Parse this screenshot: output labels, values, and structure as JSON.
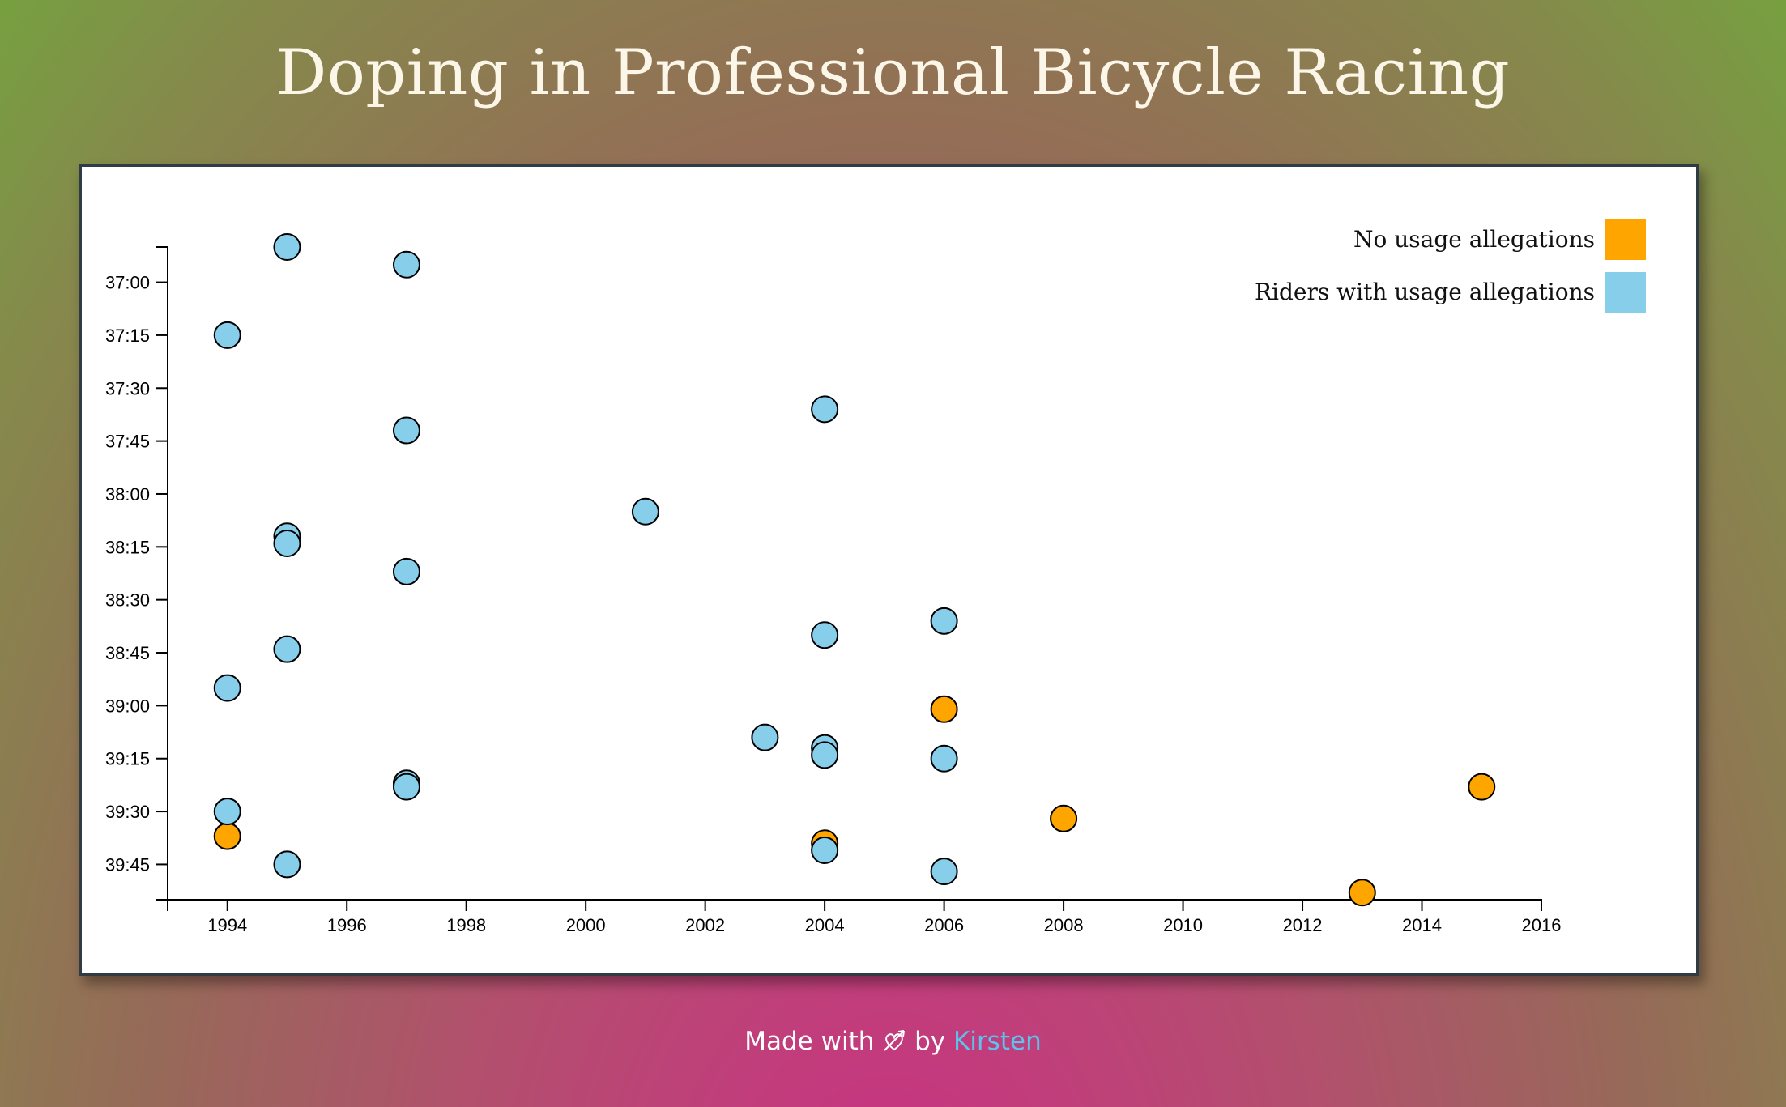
{
  "page": {
    "title": "Doping in Professional Bicycle Racing",
    "footer": {
      "made_with": "Made with",
      "by": "by",
      "author": "Kirsten",
      "icon": "heart-arrow-icon"
    }
  },
  "colors": {
    "no_allegations": "#ffa500",
    "allegations": "#87ceeb",
    "point_stroke": "#000000"
  },
  "chart_data": {
    "type": "scatter",
    "title": "",
    "xlabel": "",
    "ylabel": "",
    "xlim": [
      1993,
      2016
    ],
    "ylim_seconds": [
      2210,
      2395
    ],
    "y_inverted": true,
    "x_ticks": [
      "1994",
      "1996",
      "1998",
      "2000",
      "2002",
      "2004",
      "2006",
      "2008",
      "2010",
      "2012",
      "2014",
      "2016"
    ],
    "y_ticks": [
      "37:00",
      "37:15",
      "37:30",
      "37:45",
      "38:00",
      "38:15",
      "38:30",
      "38:45",
      "39:00",
      "39:15",
      "39:30",
      "39:45"
    ],
    "legend_position": "top-right",
    "series": [
      {
        "name": "No usage allegations",
        "color": "#ffa500",
        "points": [
          {
            "year": 1994,
            "time": "39:37"
          },
          {
            "year": 2004,
            "time": "39:39"
          },
          {
            "year": 2006,
            "time": "39:01"
          },
          {
            "year": 2008,
            "time": "39:32"
          },
          {
            "year": 2013,
            "time": "39:53"
          },
          {
            "year": 2015,
            "time": "39:23"
          }
        ]
      },
      {
        "name": "Riders with usage allegations",
        "color": "#87ceeb",
        "points": [
          {
            "year": 1995,
            "time": "36:50"
          },
          {
            "year": 1997,
            "time": "36:55"
          },
          {
            "year": 1994,
            "time": "37:15"
          },
          {
            "year": 2004,
            "time": "37:36"
          },
          {
            "year": 1997,
            "time": "37:42"
          },
          {
            "year": 2001,
            "time": "38:05"
          },
          {
            "year": 1995,
            "time": "38:12"
          },
          {
            "year": 1995,
            "time": "38:14"
          },
          {
            "year": 1997,
            "time": "38:22"
          },
          {
            "year": 2006,
            "time": "38:36"
          },
          {
            "year": 2004,
            "time": "38:40"
          },
          {
            "year": 1995,
            "time": "38:44"
          },
          {
            "year": 1994,
            "time": "38:55"
          },
          {
            "year": 2003,
            "time": "39:09"
          },
          {
            "year": 2004,
            "time": "39:12"
          },
          {
            "year": 2004,
            "time": "39:14"
          },
          {
            "year": 2006,
            "time": "39:15"
          },
          {
            "year": 1997,
            "time": "39:22"
          },
          {
            "year": 1997,
            "time": "39:23"
          },
          {
            "year": 1994,
            "time": "39:30"
          },
          {
            "year": 2004,
            "time": "39:41"
          },
          {
            "year": 1995,
            "time": "39:45"
          },
          {
            "year": 2006,
            "time": "39:47"
          }
        ]
      }
    ]
  }
}
